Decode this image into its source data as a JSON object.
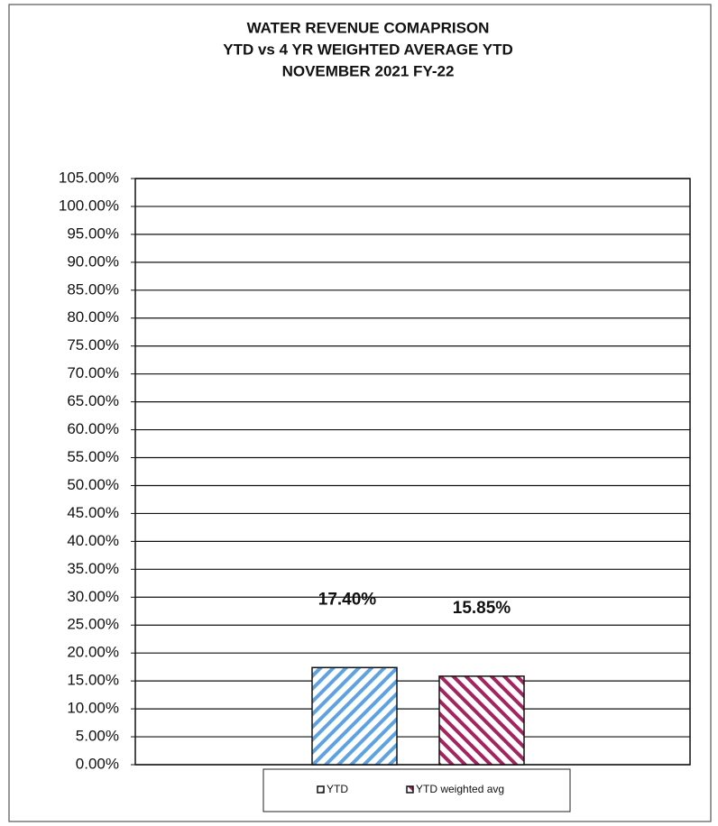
{
  "chart_data": {
    "type": "bar",
    "title": "WATER REVENUE COMAPRISON",
    "subtitle": [
      "YTD vs 4 YR  WEIGHTED AVERAGE YTD",
      "NOVEMBER 2021 FY-22"
    ],
    "categories": [
      null
    ],
    "series": [
      {
        "name": "YTD",
        "color": "#5ea3e0",
        "values": [
          17.4
        ],
        "value_labels": [
          "17.40%"
        ]
      },
      {
        "name": "YTD weighted avg",
        "color": "#a3245f",
        "values": [
          15.85
        ],
        "value_labels": [
          "15.85%"
        ]
      }
    ],
    "ylim": [
      0,
      105
    ],
    "yticks": [
      {
        "value": 0,
        "label": "0.00%"
      },
      {
        "value": 5,
        "label": "5.00%"
      },
      {
        "value": 10,
        "label": "10.00%"
      },
      {
        "value": 15,
        "label": "15.00%"
      },
      {
        "value": 20,
        "label": "20.00%"
      },
      {
        "value": 25,
        "label": "25.00%"
      },
      {
        "value": 30,
        "label": "30.00%"
      },
      {
        "value": 35,
        "label": "35.00%"
      },
      {
        "value": 40,
        "label": "40.00%"
      },
      {
        "value": 45,
        "label": "45.00%"
      },
      {
        "value": 50,
        "label": "50.00%"
      },
      {
        "value": 55,
        "label": "55.00%"
      },
      {
        "value": 60,
        "label": "60.00%"
      },
      {
        "value": 65,
        "label": "65.00%"
      },
      {
        "value": 70,
        "label": "70.00%"
      },
      {
        "value": 75,
        "label": "75.00%"
      },
      {
        "value": 80,
        "label": "80.00%"
      },
      {
        "value": 85,
        "label": "85.00%"
      },
      {
        "value": 90,
        "label": "90.00%"
      },
      {
        "value": 95,
        "label": "95.00%"
      },
      {
        "value": 100,
        "label": "100.00%"
      },
      {
        "value": 105,
        "label": "105.00%"
      }
    ],
    "grid": true,
    "legend": "bottom"
  }
}
